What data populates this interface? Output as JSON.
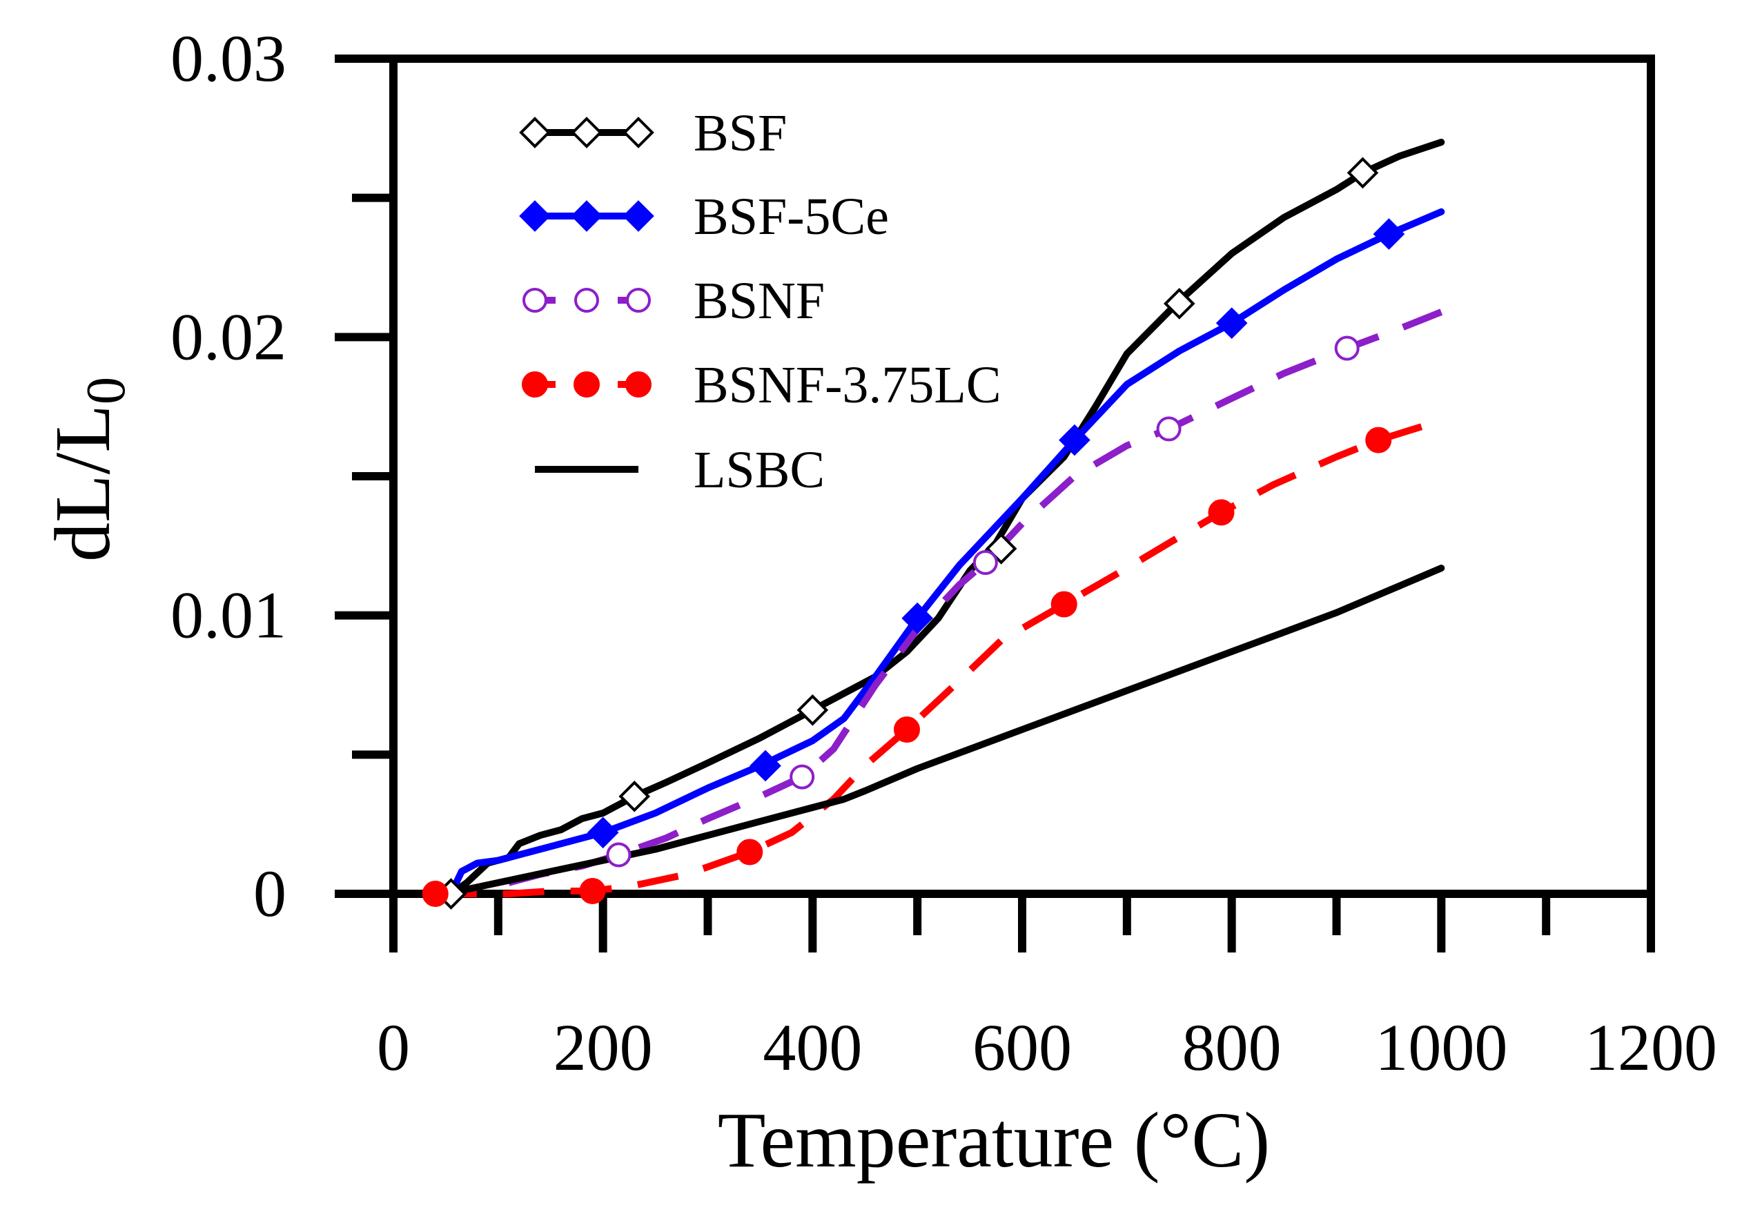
{
  "chart_data": {
    "type": "line",
    "title": "",
    "xlabel": "Temperature (°C)",
    "ylabel_main": "dL/L",
    "ylabel_sub": "0",
    "xlim": [
      0,
      1200
    ],
    "ylim": [
      0,
      0.03
    ],
    "x_ticks": [
      0,
      200,
      400,
      600,
      800,
      1000,
      1200
    ],
    "x_tick_labels": [
      "0",
      "200",
      "400",
      "600",
      "800",
      "1000",
      "1200"
    ],
    "x_minor_ticks": [
      100,
      300,
      500,
      700,
      900,
      1100
    ],
    "y_ticks": [
      0,
      0.01,
      0.02,
      0.03
    ],
    "y_tick_labels": [
      "0",
      "0.01",
      "0.02",
      "0.03"
    ],
    "y_minor_ticks": [
      0.005,
      0.015,
      0.025
    ],
    "grid": false,
    "legend_position": "top-left",
    "series": [
      {
        "name": "BSF",
        "color": "#000000",
        "line_style": "solid",
        "marker": "open-diamond",
        "x": [
          55,
          70,
          90,
          110,
          120,
          140,
          160,
          180,
          200,
          230,
          260,
          300,
          350,
          400,
          430,
          460,
          490,
          520,
          550,
          575,
          600,
          640,
          670,
          700,
          750,
          800,
          850,
          900,
          925,
          960,
          1000
        ],
        "y": [
          0,
          0.0004,
          0.0011,
          0.0013,
          0.0018,
          0.0021,
          0.0023,
          0.0027,
          0.0029,
          0.0035,
          0.004,
          0.0047,
          0.0056,
          0.0066,
          0.0072,
          0.0078,
          0.0087,
          0.0099,
          0.0116,
          0.0126,
          0.0142,
          0.0157,
          0.0175,
          0.0194,
          0.0213,
          0.023,
          0.0243,
          0.0253,
          0.0259,
          0.0265,
          0.027
        ],
        "marker_x": [
          55,
          230,
          400,
          580,
          750,
          925
        ],
        "marker_y": [
          0,
          0.0035,
          0.0066,
          0.0124,
          0.0212,
          0.0259
        ]
      },
      {
        "name": "BSF-5Ce",
        "color": "#0000ff",
        "line_style": "solid",
        "marker": "filled-diamond",
        "x": [
          55,
          65,
          80,
          100,
          120,
          150,
          180,
          200,
          250,
          300,
          350,
          400,
          430,
          460,
          500,
          540,
          600,
          650,
          700,
          750,
          800,
          850,
          900,
          950,
          1000
        ],
        "y": [
          0,
          0.0008,
          0.0011,
          0.0012,
          0.0014,
          0.0017,
          0.002,
          0.0022,
          0.0029,
          0.0038,
          0.0046,
          0.0055,
          0.0063,
          0.0078,
          0.0099,
          0.0118,
          0.0142,
          0.0163,
          0.0183,
          0.0195,
          0.0205,
          0.0217,
          0.0228,
          0.0237,
          0.0245
        ],
        "marker_x": [
          200,
          355,
          500,
          650,
          800,
          950
        ],
        "marker_y": [
          0.0022,
          0.0046,
          0.0099,
          0.0163,
          0.0205,
          0.0237
        ]
      },
      {
        "name": "BSNF",
        "color": "#8c1fc9",
        "line_style": "dashed",
        "marker": "open-circle",
        "x": [
          110,
          140,
          180,
          215,
          260,
          300,
          350,
          390,
          420,
          460,
          500,
          540,
          565,
          600,
          650,
          700,
          740,
          800,
          850,
          910,
          960,
          1000
        ],
        "y": [
          0.0004,
          0.0007,
          0.001,
          0.0014,
          0.002,
          0.0027,
          0.0035,
          0.0042,
          0.0052,
          0.0075,
          0.0095,
          0.0111,
          0.0119,
          0.0133,
          0.015,
          0.0161,
          0.0167,
          0.0178,
          0.0187,
          0.0196,
          0.0203,
          0.0209
        ],
        "marker_x": [
          215,
          390,
          565,
          740,
          910
        ],
        "marker_y": [
          0.0014,
          0.0042,
          0.0119,
          0.0167,
          0.0196
        ]
      },
      {
        "name": "BSNF-3.75LC",
        "color": "#ff0000",
        "line_style": "dashed",
        "marker": "filled-circle",
        "x": [
          40,
          70,
          110,
          150,
          190,
          230,
          280,
          340,
          380,
          420,
          450,
          490,
          530,
          580,
          640,
          700,
          740,
          790,
          840,
          900,
          940,
          1000
        ],
        "y": [
          0,
          0,
          0,
          0.0001,
          0.0001,
          0.0003,
          0.0007,
          0.0015,
          0.0022,
          0.0034,
          0.0046,
          0.0059,
          0.0073,
          0.0091,
          0.0104,
          0.0117,
          0.0126,
          0.0137,
          0.0147,
          0.0157,
          0.0163,
          0.017
        ],
        "marker_x": [
          40,
          190,
          340,
          490,
          640,
          790,
          940
        ],
        "marker_y": [
          0,
          0.0001,
          0.0015,
          0.0059,
          0.0104,
          0.0137,
          0.0163
        ]
      },
      {
        "name": "LSBC",
        "color": "#000000",
        "line_style": "solid",
        "marker": "none",
        "x": [
          50,
          100,
          150,
          200,
          250,
          300,
          350,
          400,
          430,
          450,
          500,
          550,
          600,
          650,
          700,
          750,
          800,
          850,
          900,
          950,
          1000
        ],
        "y": [
          0,
          0.0004,
          0.0008,
          0.0012,
          0.0016,
          0.0021,
          0.0026,
          0.0031,
          0.0034,
          0.0037,
          0.0045,
          0.0052,
          0.0059,
          0.0066,
          0.0073,
          0.008,
          0.0087,
          0.0094,
          0.0101,
          0.0109,
          0.0117
        ],
        "marker_x": [],
        "marker_y": []
      }
    ]
  }
}
